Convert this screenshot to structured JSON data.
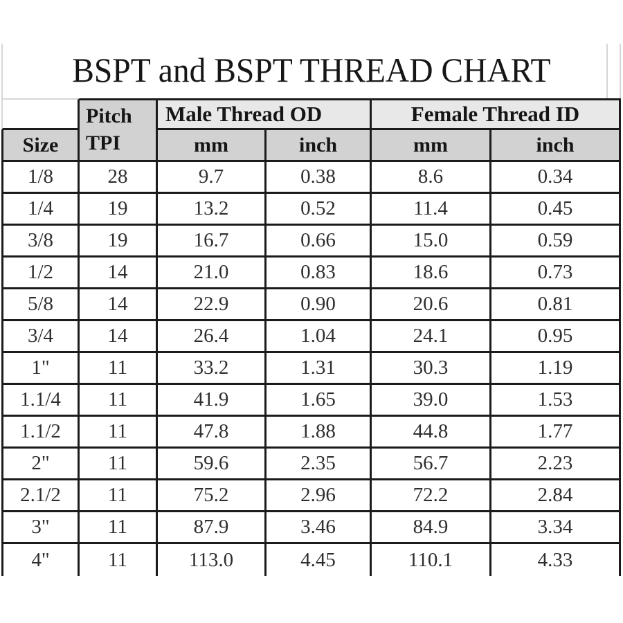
{
  "title": "BSPT and BSPT THREAD CHART",
  "colors": {
    "border_black": "#1b1b1b",
    "light_gray_line": "#d6d6d6",
    "header_cell_bg": "#d2d2d2",
    "group_header_bg": "#e8e8e8",
    "data_bg": "#ffffff"
  },
  "table": {
    "header": {
      "size": "Size",
      "pitch": "Pitch",
      "tpi": "TPI",
      "male_od": "Male Thread OD",
      "female_id": "Female Thread ID",
      "male_mm": "mm",
      "male_inch": "inch",
      "female_mm": "mm",
      "female_inch": "inch"
    }
  },
  "chart_data": {
    "type": "table",
    "title": "BSPT and BSPT THREAD CHART",
    "column_groups": [
      "",
      "Pitch TPI",
      "Male Thread OD",
      "Female Thread ID"
    ],
    "columns": [
      "Size",
      "Pitch TPI",
      "Male Thread OD mm",
      "Male Thread OD inch",
      "Female Thread ID mm",
      "Female Thread ID inch"
    ],
    "rows": [
      [
        "1/8",
        "28",
        "9.7",
        "0.38",
        "8.6",
        "0.34"
      ],
      [
        "1/4",
        "19",
        "13.2",
        "0.52",
        "11.4",
        "0.45"
      ],
      [
        "3/8",
        "19",
        "16.7",
        "0.66",
        "15.0",
        "0.59"
      ],
      [
        "1/2",
        "14",
        "21.0",
        "0.83",
        "18.6",
        "0.73"
      ],
      [
        "5/8",
        "14",
        "22.9",
        "0.90",
        "20.6",
        "0.81"
      ],
      [
        "3/4",
        "14",
        "26.4",
        "1.04",
        "24.1",
        "0.95"
      ],
      [
        "1\"",
        "11",
        "33.2",
        "1.31",
        "30.3",
        "1.19"
      ],
      [
        "1.1/4",
        "11",
        "41.9",
        "1.65",
        "39.0",
        "1.53"
      ],
      [
        "1.1/2",
        "11",
        "47.8",
        "1.88",
        "44.8",
        "1.77"
      ],
      [
        "2\"",
        "11",
        "59.6",
        "2.35",
        "56.7",
        "2.23"
      ],
      [
        "2.1/2",
        "11",
        "75.2",
        "2.96",
        "72.2",
        "2.84"
      ],
      [
        "3\"",
        "11",
        "87.9",
        "3.46",
        "84.9",
        "3.34"
      ],
      [
        "4\"",
        "11",
        "113.0",
        "4.45",
        "110.1",
        "4.33"
      ]
    ]
  }
}
